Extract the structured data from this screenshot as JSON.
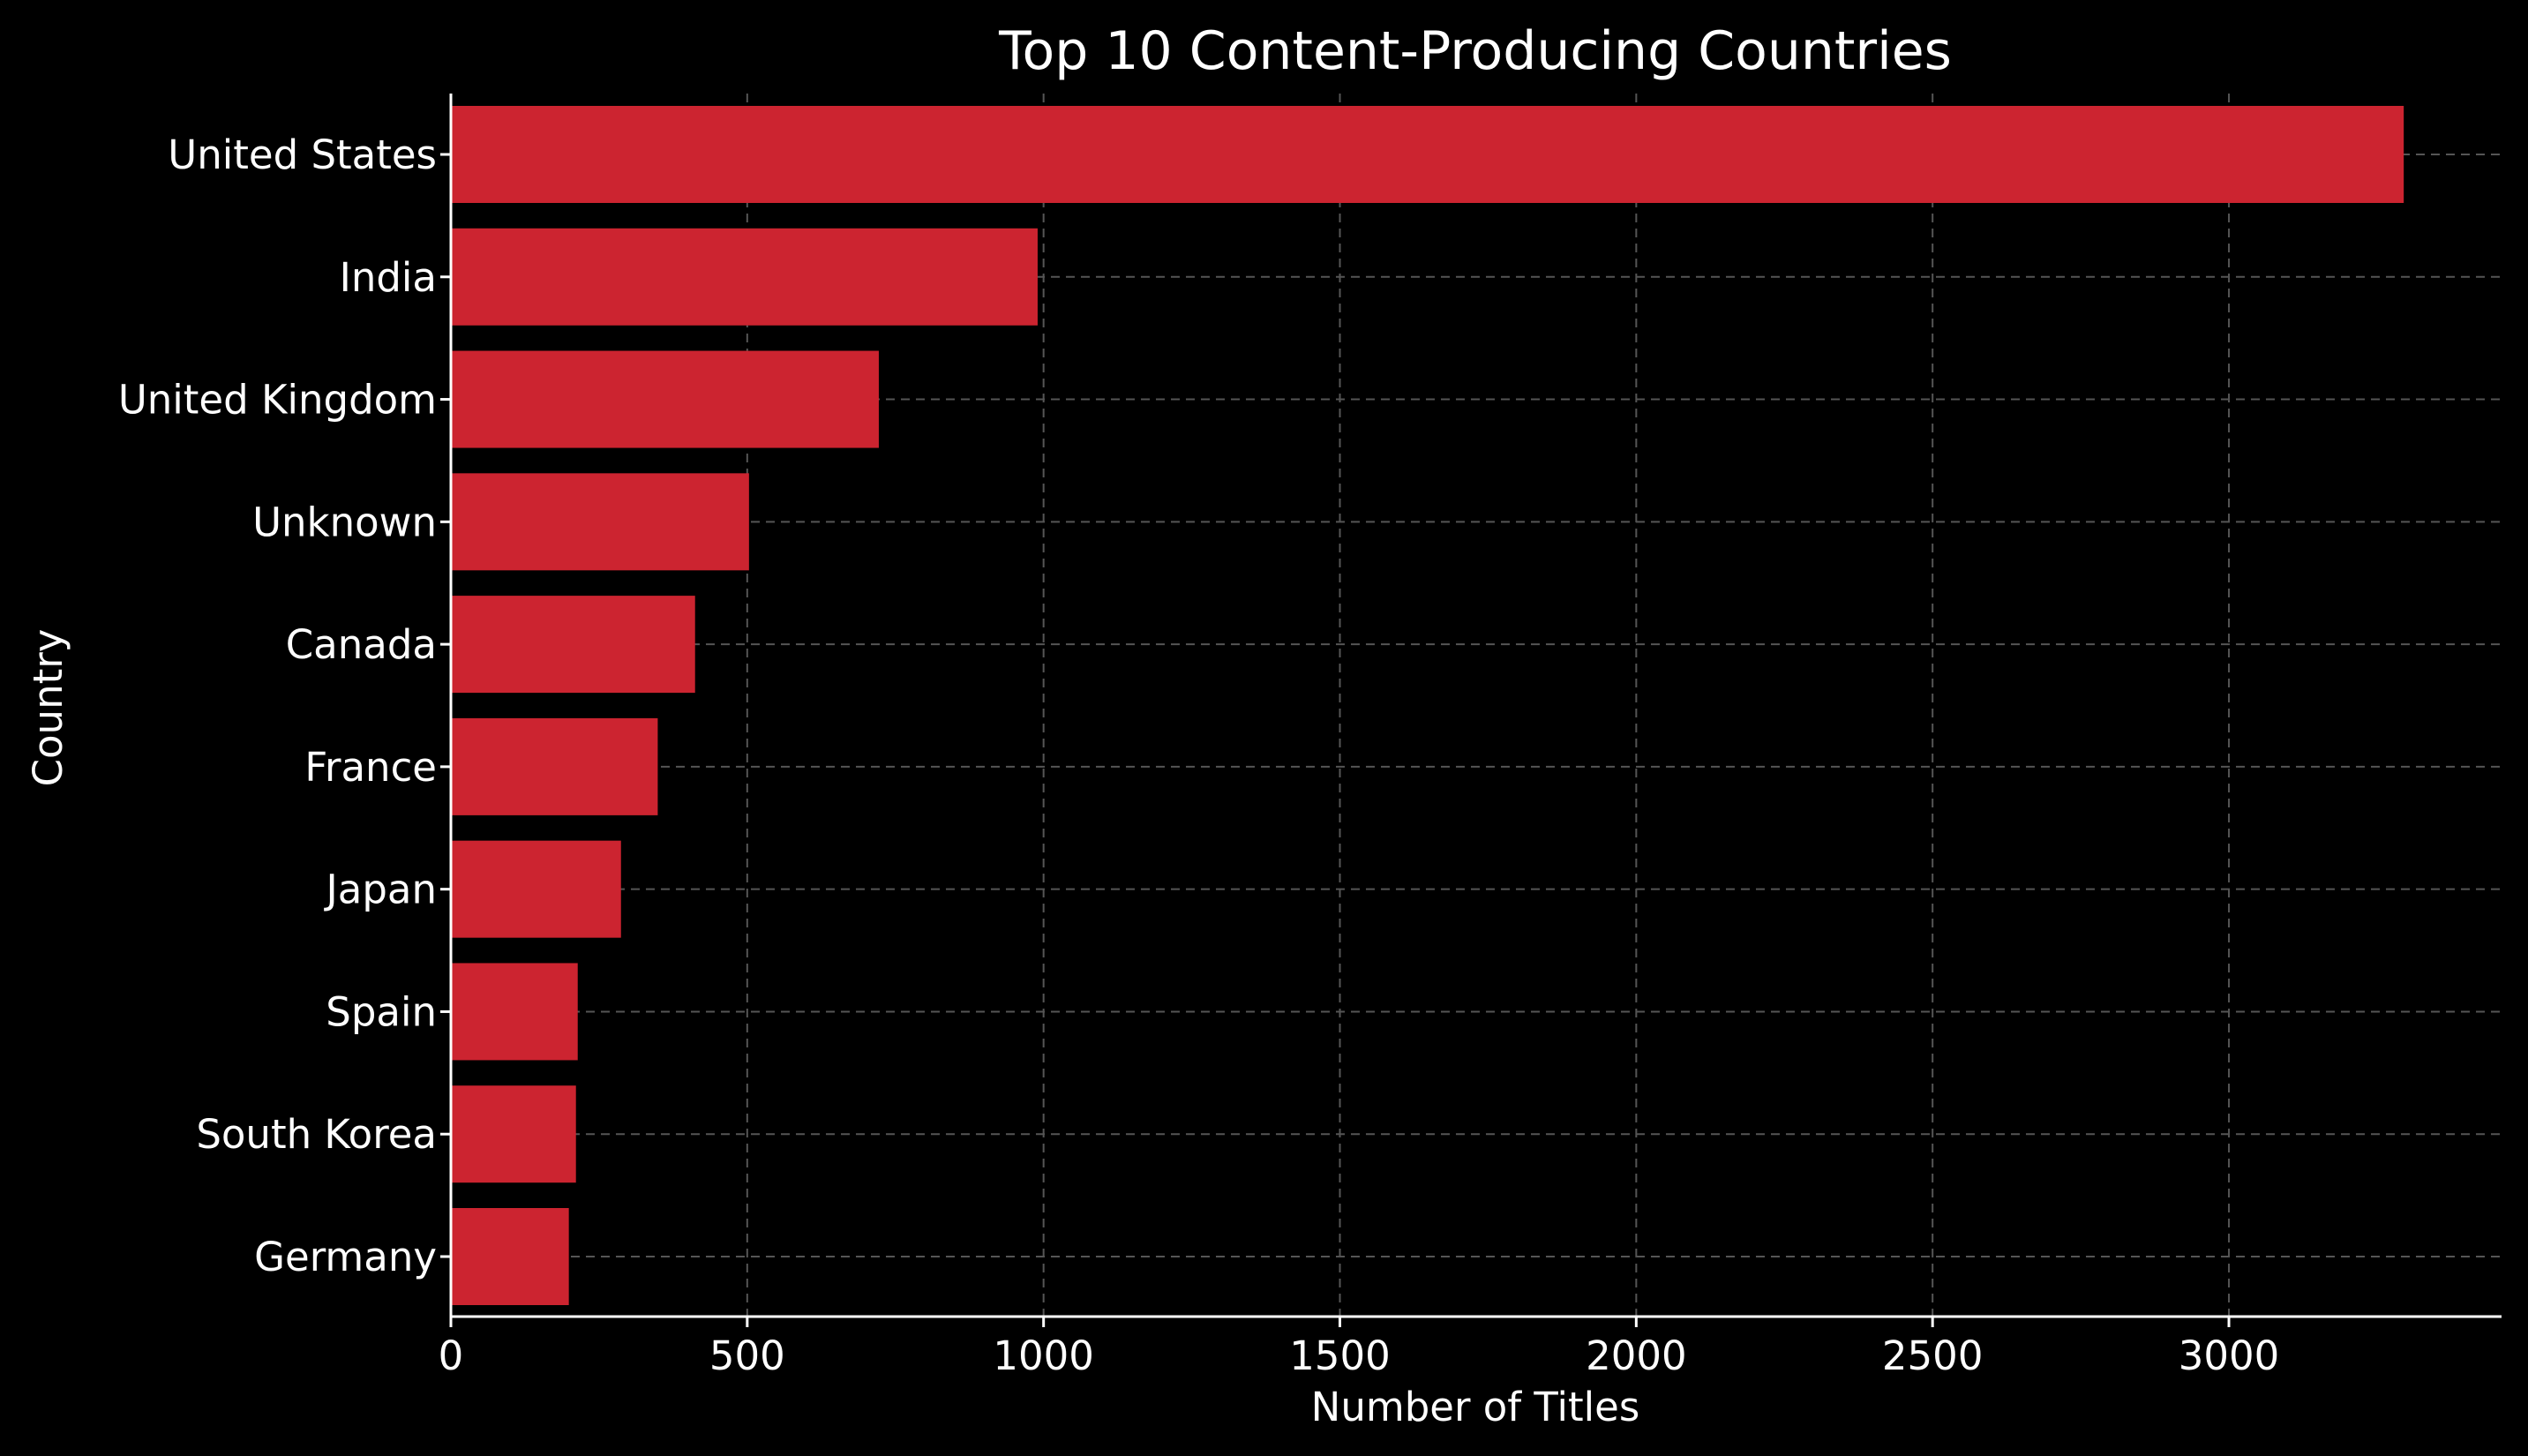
{
  "chart_data": {
    "type": "bar",
    "orientation": "horizontal",
    "title": "Top 10 Content-Producing Countries",
    "xlabel": "Number of Titles",
    "ylabel": "Country",
    "categories": [
      "United States",
      "India",
      "United Kingdom",
      "Unknown",
      "Canada",
      "France",
      "Japan",
      "Spain",
      "South Korea",
      "Germany"
    ],
    "values": [
      3295,
      990,
      722,
      503,
      412,
      349,
      287,
      214,
      211,
      199
    ],
    "xlim": [
      0,
      3460
    ],
    "xticks": [
      0,
      500,
      1000,
      1500,
      2000,
      2500,
      3000
    ],
    "grid": true,
    "bar_color": "#cc2430",
    "background_color": "#000000",
    "grid_color": "#555555",
    "text_color": "#ffffff"
  }
}
